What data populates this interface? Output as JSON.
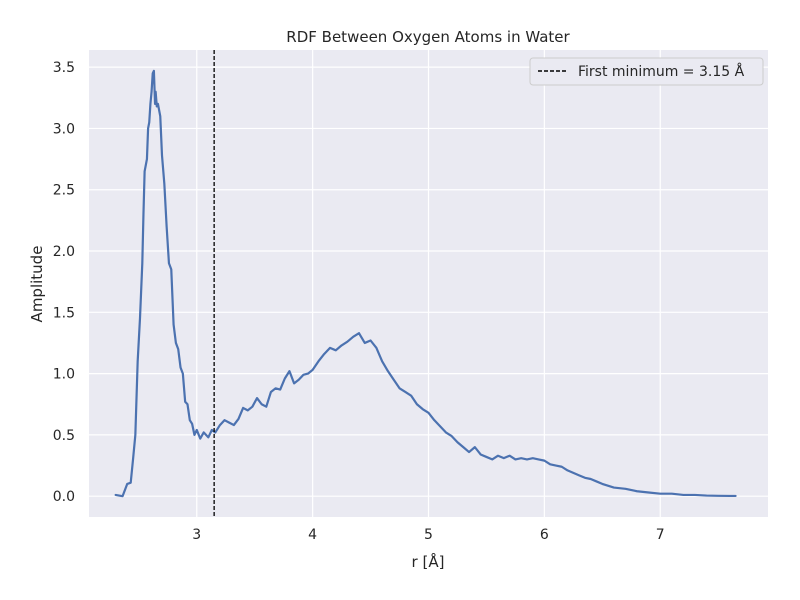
{
  "chart_data": {
    "type": "line",
    "title": "RDF Between Oxygen Atoms in Water",
    "xlabel": "r [Å]",
    "ylabel": "Amplitude",
    "xlim": [
      2.07,
      7.93
    ],
    "ylim": [
      -0.17,
      3.64
    ],
    "xticks": [
      3,
      4,
      5,
      6,
      7
    ],
    "xtick_labels": [
      "3",
      "4",
      "5",
      "6",
      "7"
    ],
    "yticks": [
      0.0,
      0.5,
      1.0,
      1.5,
      2.0,
      2.5,
      3.0,
      3.5
    ],
    "ytick_labels": [
      "0.0",
      "0.5",
      "1.0",
      "1.5",
      "2.0",
      "2.5",
      "3.0",
      "3.5"
    ],
    "grid": true,
    "legend_position": "top-right",
    "series": [
      {
        "name": "",
        "color": "#4c72b0",
        "x": [
          2.3,
          2.36,
          2.4,
          2.43,
          2.45,
          2.47,
          2.49,
          2.51,
          2.53,
          2.54,
          2.55,
          2.57,
          2.58,
          2.59,
          2.6,
          2.61,
          2.62,
          2.63,
          2.64,
          2.645,
          2.655,
          2.665,
          2.675,
          2.685,
          2.7,
          2.72,
          2.74,
          2.76,
          2.78,
          2.8,
          2.82,
          2.84,
          2.86,
          2.88,
          2.9,
          2.92,
          2.94,
          2.96,
          2.98,
          3.0,
          3.03,
          3.06,
          3.1,
          3.13,
          3.16,
          3.2,
          3.24,
          3.28,
          3.32,
          3.36,
          3.4,
          3.44,
          3.48,
          3.52,
          3.56,
          3.6,
          3.64,
          3.68,
          3.72,
          3.76,
          3.8,
          3.84,
          3.88,
          3.92,
          3.96,
          4.0,
          4.05,
          4.1,
          4.15,
          4.2,
          4.25,
          4.3,
          4.35,
          4.4,
          4.45,
          4.5,
          4.55,
          4.6,
          4.65,
          4.7,
          4.75,
          4.8,
          4.85,
          4.9,
          4.95,
          5.0,
          5.05,
          5.1,
          5.15,
          5.2,
          5.25,
          5.3,
          5.35,
          5.4,
          5.45,
          5.5,
          5.55,
          5.6,
          5.65,
          5.7,
          5.75,
          5.8,
          5.85,
          5.9,
          5.95,
          6.0,
          6.05,
          6.1,
          6.15,
          6.2,
          6.25,
          6.3,
          6.35,
          6.4,
          6.45,
          6.5,
          6.6,
          6.7,
          6.8,
          6.9,
          7.0,
          7.1,
          7.2,
          7.3,
          7.4,
          7.5,
          7.6,
          7.65
        ],
        "y": [
          0.01,
          0.0,
          0.1,
          0.11,
          0.3,
          0.5,
          1.1,
          1.45,
          1.9,
          2.3,
          2.65,
          2.75,
          3.0,
          3.05,
          3.2,
          3.3,
          3.45,
          3.47,
          3.2,
          3.3,
          3.18,
          3.2,
          3.15,
          3.1,
          2.78,
          2.55,
          2.2,
          1.9,
          1.85,
          1.4,
          1.25,
          1.2,
          1.05,
          1.0,
          0.77,
          0.75,
          0.62,
          0.59,
          0.5,
          0.54,
          0.47,
          0.52,
          0.48,
          0.54,
          0.52,
          0.58,
          0.62,
          0.6,
          0.58,
          0.63,
          0.72,
          0.7,
          0.73,
          0.8,
          0.75,
          0.73,
          0.85,
          0.88,
          0.87,
          0.96,
          1.02,
          0.92,
          0.95,
          0.99,
          1.0,
          1.03,
          1.1,
          1.16,
          1.21,
          1.19,
          1.23,
          1.26,
          1.3,
          1.33,
          1.25,
          1.27,
          1.21,
          1.1,
          1.02,
          0.95,
          0.88,
          0.85,
          0.82,
          0.75,
          0.71,
          0.68,
          0.62,
          0.57,
          0.52,
          0.49,
          0.44,
          0.4,
          0.36,
          0.4,
          0.34,
          0.32,
          0.3,
          0.33,
          0.31,
          0.33,
          0.3,
          0.31,
          0.3,
          0.31,
          0.3,
          0.29,
          0.26,
          0.25,
          0.24,
          0.21,
          0.19,
          0.17,
          0.15,
          0.14,
          0.12,
          0.1,
          0.07,
          0.06,
          0.04,
          0.03,
          0.02,
          0.02,
          0.01,
          0.01,
          0.005,
          0.003,
          0.002,
          0.002
        ]
      }
    ],
    "annotations": [
      {
        "type": "vline",
        "x": 3.15,
        "style": "dashed",
        "color": "#000000",
        "label": "First minimum = 3.15 Å"
      }
    ]
  }
}
